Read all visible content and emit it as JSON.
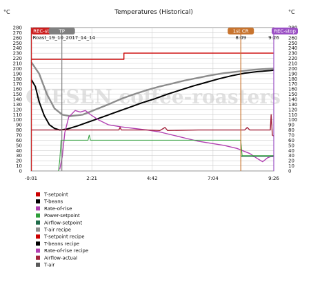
{
  "chart_data": {
    "type": "line",
    "title": "Temperatures (Historical)",
    "y_unit_left": "°C",
    "y_unit_right": "°C",
    "watermark": "GIESEN coffee-roasters",
    "xlim": [
      -0.0167,
      9.433
    ],
    "ylim": [
      0,
      280
    ],
    "x_tick_labels": [
      "-0:01",
      "2:21",
      "4:42",
      "7:04",
      "9:26"
    ],
    "x_tick_values": [
      -0.0167,
      2.35,
      4.7,
      7.067,
      9.433
    ],
    "y_ticks": [
      0,
      10,
      20,
      30,
      40,
      50,
      60,
      70,
      80,
      90,
      100,
      110,
      120,
      130,
      140,
      150,
      160,
      170,
      180,
      190,
      200,
      210,
      220,
      230,
      240,
      250,
      260,
      270,
      280
    ],
    "grid": true,
    "legend_position": "bottom-left",
    "events": [
      {
        "label": "REC-start",
        "x": 0.0,
        "color": "#cc1f1f",
        "time": "Roast_19_10_2017_14_14"
      },
      {
        "label": "TP",
        "x": 1.183,
        "color": "#808080",
        "time": ""
      },
      {
        "label": "1st CR",
        "x": 8.15,
        "color": "#c8742e",
        "time": "8:09"
      },
      {
        "label": "REC-stop",
        "x": 9.433,
        "color": "#9a4fc4",
        "time": "9:26"
      }
    ],
    "series": [
      {
        "name": "T-setpoint",
        "color": "#cc0000",
        "points": []
      },
      {
        "name": "T-beans",
        "color": "#000000",
        "points": []
      },
      {
        "name": "Rate-of-rise",
        "color": "#b13fb1",
        "points": []
      },
      {
        "name": "Power-setpoint",
        "color": "#2e9e3a",
        "points": []
      },
      {
        "name": "Airflow-setpoint",
        "color": "#1f6b4a",
        "points": []
      },
      {
        "name": "T-air recipe",
        "color": "#8c8c8c",
        "points": [
          [
            0.0,
            212
          ],
          [
            0.3,
            190
          ],
          [
            0.6,
            150
          ],
          [
            0.9,
            122
          ],
          [
            1.2,
            110
          ],
          [
            1.5,
            107
          ],
          [
            2.0,
            110
          ],
          [
            2.5,
            120
          ],
          [
            3.0,
            130
          ],
          [
            3.5,
            141
          ],
          [
            4.0,
            150
          ],
          [
            4.5,
            158
          ],
          [
            5.0,
            165
          ],
          [
            5.5,
            171
          ],
          [
            6.0,
            177
          ],
          [
            6.5,
            182
          ],
          [
            7.0,
            187
          ],
          [
            7.5,
            191
          ],
          [
            8.0,
            194
          ],
          [
            8.5,
            197
          ],
          [
            9.0,
            199
          ],
          [
            9.433,
            200
          ]
        ]
      },
      {
        "name": "T-setpoint recipe",
        "color": "#cc0000",
        "points": [
          [
            0.0,
            218
          ],
          [
            3.6,
            218
          ],
          [
            3.6,
            230
          ],
          [
            9.433,
            230
          ]
        ]
      },
      {
        "name": "T-beans recipe",
        "color": "#000000",
        "points": [
          [
            0.0,
            178
          ],
          [
            0.15,
            165
          ],
          [
            0.3,
            135
          ],
          [
            0.5,
            108
          ],
          [
            0.7,
            90
          ],
          [
            0.9,
            83
          ],
          [
            1.1,
            80
          ],
          [
            1.4,
            82
          ],
          [
            1.8,
            88
          ],
          [
            2.3,
            97
          ],
          [
            2.8,
            106
          ],
          [
            3.3,
            115
          ],
          [
            3.8,
            124
          ],
          [
            4.3,
            133
          ],
          [
            4.8,
            141
          ],
          [
            5.3,
            150
          ],
          [
            5.8,
            158
          ],
          [
            6.3,
            166
          ],
          [
            6.8,
            173
          ],
          [
            7.3,
            180
          ],
          [
            7.8,
            186
          ],
          [
            8.3,
            191
          ],
          [
            8.8,
            194
          ],
          [
            9.3,
            196
          ],
          [
            9.433,
            197
          ]
        ]
      },
      {
        "name": "Rate-of-rise recipe",
        "color": "#b13fb1",
        "points": [
          [
            1.1,
            3
          ],
          [
            1.2,
            28
          ],
          [
            1.3,
            75
          ],
          [
            1.45,
            105
          ],
          [
            1.7,
            118
          ],
          [
            1.9,
            115
          ],
          [
            2.1,
            118
          ],
          [
            2.3,
            110
          ],
          [
            2.6,
            100
          ],
          [
            3.0,
            90
          ],
          [
            3.5,
            86
          ],
          [
            4.0,
            83
          ],
          [
            4.5,
            80
          ],
          [
            5.0,
            76
          ],
          [
            5.5,
            70
          ],
          [
            6.0,
            64
          ],
          [
            6.5,
            58
          ],
          [
            7.0,
            54
          ],
          [
            7.5,
            50
          ],
          [
            8.0,
            44
          ],
          [
            8.5,
            34
          ],
          [
            8.8,
            24
          ],
          [
            9.0,
            18
          ],
          [
            9.2,
            26
          ],
          [
            9.433,
            30
          ]
        ]
      },
      {
        "name": "Airflow-actual",
        "color": "#a3233c",
        "points": [
          [
            0.0,
            80
          ],
          [
            1.0,
            80
          ],
          [
            2.0,
            80
          ],
          [
            3.0,
            80
          ],
          [
            3.4,
            80
          ],
          [
            3.45,
            85
          ],
          [
            3.5,
            80
          ],
          [
            4.5,
            80
          ],
          [
            5.0,
            79
          ],
          [
            5.2,
            85
          ],
          [
            5.3,
            79
          ],
          [
            6.5,
            80
          ],
          [
            7.5,
            80
          ],
          [
            8.0,
            80
          ],
          [
            8.3,
            80
          ],
          [
            8.4,
            85
          ],
          [
            8.5,
            80
          ],
          [
            9.0,
            80
          ],
          [
            9.3,
            80
          ],
          [
            9.33,
            110
          ],
          [
            9.38,
            70
          ],
          [
            9.433,
            68
          ]
        ]
      },
      {
        "name": "T-air",
        "color": "#5a5a5a",
        "points": []
      }
    ],
    "power_setpoint_recipe": [
      [
        1.05,
        0
      ],
      [
        1.1,
        20
      ],
      [
        1.15,
        60
      ],
      [
        1.3,
        60
      ],
      [
        2.2,
        60
      ],
      [
        2.25,
        70
      ],
      [
        2.3,
        60
      ],
      [
        8.15,
        60
      ],
      [
        8.2,
        30
      ],
      [
        9.433,
        30
      ]
    ],
    "airflow_setpoint_recipe": [
      [
        8.15,
        30
      ],
      [
        8.2,
        28
      ],
      [
        9.433,
        28
      ]
    ]
  }
}
